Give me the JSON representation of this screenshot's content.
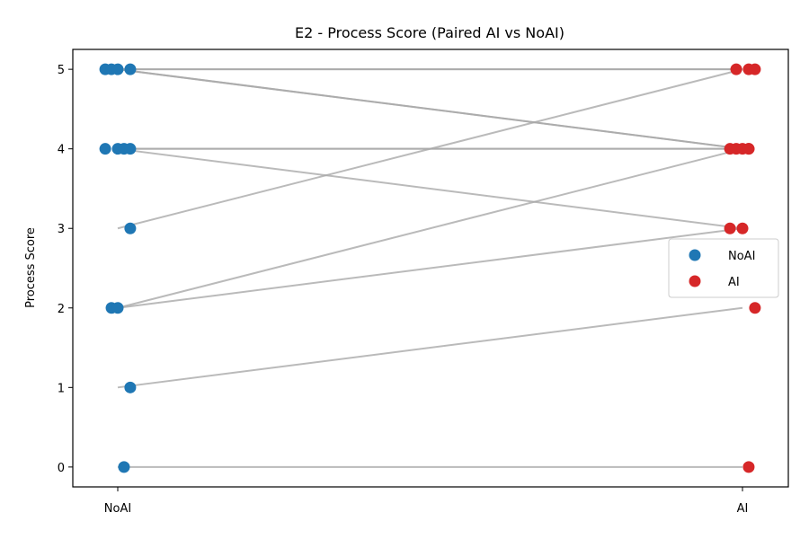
{
  "chart_data": {
    "type": "scatter",
    "title": "E2 - Process Score (Paired AI vs NoAI)",
    "xlabel": "",
    "ylabel": "Process Score",
    "categories": [
      "NoAI",
      "AI"
    ],
    "ylim": [
      -0.25,
      5.25
    ],
    "yticks": [
      0,
      1,
      2,
      3,
      4,
      5
    ],
    "grid": false,
    "legend_position": "center-right",
    "series": [
      {
        "name": "NoAI",
        "color": "#1f77b4",
        "x": [
          -0.02,
          -0.01,
          0.0,
          0.02,
          -0.02,
          0.0,
          0.01,
          0.02,
          0.02,
          -0.01,
          0.0,
          0.02,
          0.01
        ],
        "values": [
          5,
          5,
          5,
          5,
          4,
          4,
          4,
          4,
          3,
          2,
          2,
          1,
          0
        ]
      },
      {
        "name": "AI",
        "color": "#d62728",
        "x": [
          0.99,
          1.01,
          1.02,
          0.98,
          0.99,
          1.0,
          1.01,
          1.01,
          0.98,
          1.0,
          1.02,
          1.01
        ],
        "values": [
          5,
          5,
          5,
          4,
          4,
          4,
          4,
          4,
          3,
          3,
          2,
          0
        ]
      }
    ],
    "pairs": [
      {
        "noai": 5,
        "ai": 5
      },
      {
        "noai": 5,
        "ai": 5
      },
      {
        "noai": 5,
        "ai": 4
      },
      {
        "noai": 5,
        "ai": 4
      },
      {
        "noai": 4,
        "ai": 4
      },
      {
        "noai": 4,
        "ai": 4
      },
      {
        "noai": 4,
        "ai": 3
      },
      {
        "noai": 3,
        "ai": 5
      },
      {
        "noai": 2,
        "ai": 4
      },
      {
        "noai": 2,
        "ai": 3
      },
      {
        "noai": 1,
        "ai": 2
      },
      {
        "noai": 0,
        "ai": 0
      }
    ],
    "pair_line_color": "#a9a9a9"
  }
}
